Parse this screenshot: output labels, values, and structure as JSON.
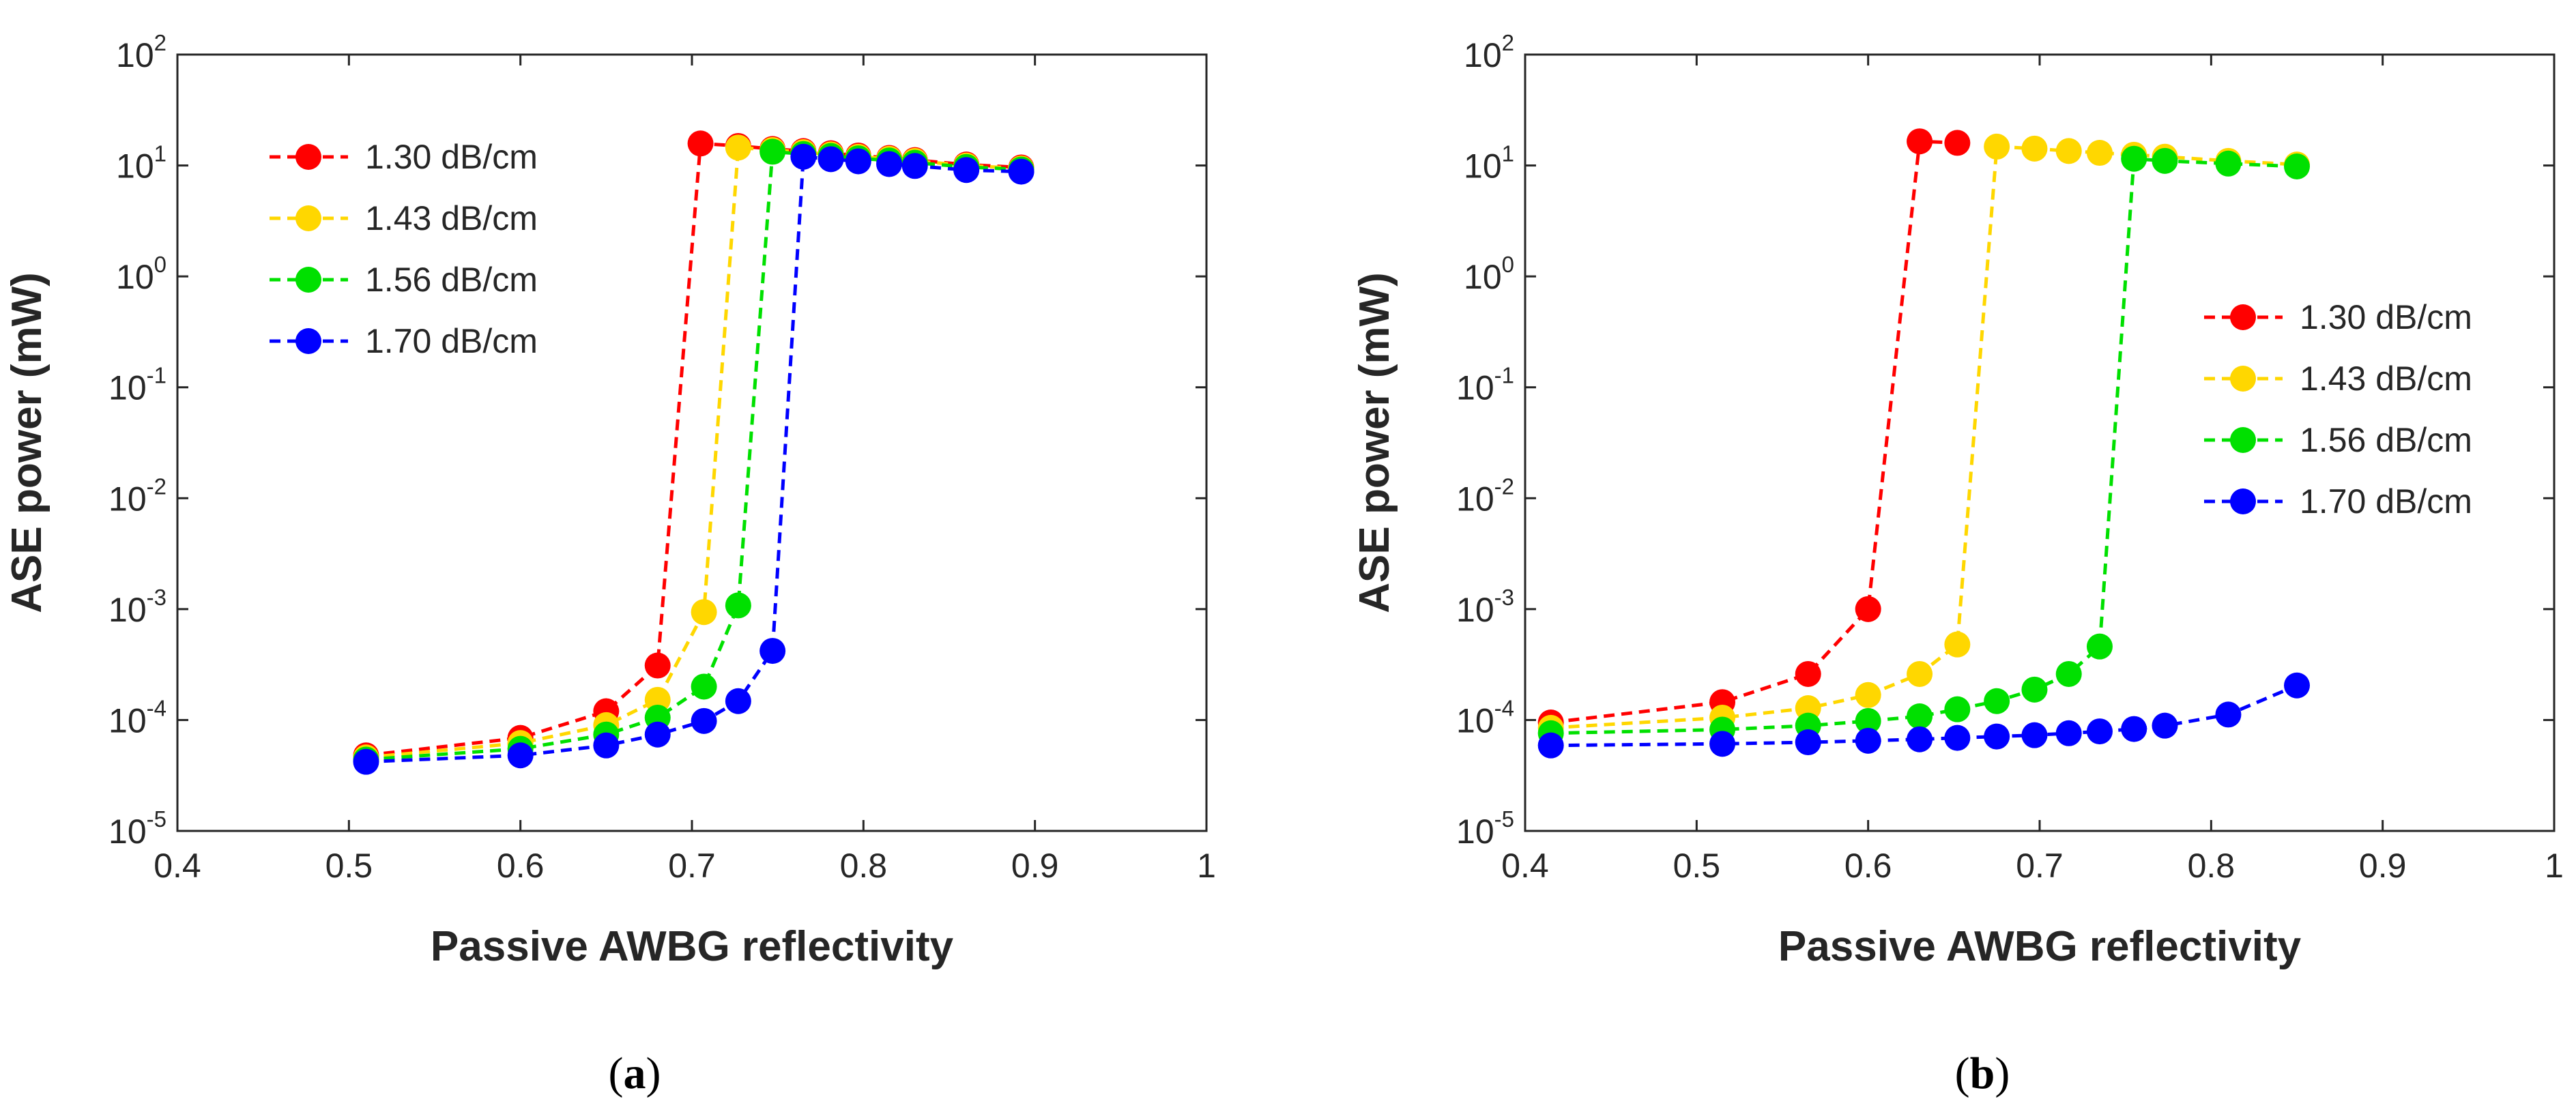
{
  "chart_data": [
    {
      "type": "line",
      "panel_label": "a",
      "xlabel": "Passive AWBG reflectivity",
      "ylabel": "ASE power (mW)",
      "xlim": [
        0.4,
        1
      ],
      "ylim": [
        1e-05,
        100
      ],
      "yscale": "log",
      "xticks": [
        "0.4",
        "0.5",
        "0.6",
        "0.7",
        "0.8",
        "0.9",
        "1"
      ],
      "yticks": [
        {
          "base": "10",
          "exp": "2"
        },
        {
          "base": "10",
          "exp": "1"
        },
        {
          "base": "10",
          "exp": "0"
        },
        {
          "base": "10",
          "exp": "-1"
        },
        {
          "base": "10",
          "exp": "-2"
        },
        {
          "base": "10",
          "exp": "-3"
        },
        {
          "base": "10",
          "exp": "-4"
        },
        {
          "base": "10",
          "exp": "-5"
        }
      ],
      "legend_position": "top-left",
      "grid": false,
      "series": [
        {
          "name": "1.30 dB/cm",
          "color": "#ff0000",
          "x": [
            0.51,
            0.6,
            0.65,
            0.68,
            0.705,
            0.727,
            0.747,
            0.765,
            0.781,
            0.797,
            0.815,
            0.83,
            0.86,
            0.892
          ],
          "y": [
            4.8e-05,
            6.9e-05,
            0.00012,
            0.00031,
            15.8,
            15.0,
            14.1,
            13.5,
            12.9,
            12.3,
            11.7,
            11.2,
            10.2,
            9.6
          ]
        },
        {
          "name": "1.43 dB/cm",
          "color": "#ffd700",
          "x": [
            0.51,
            0.6,
            0.65,
            0.68,
            0.707,
            0.727,
            0.747,
            0.765,
            0.781,
            0.797,
            0.815,
            0.83,
            0.86,
            0.892
          ],
          "y": [
            4.6e-05,
            6.2e-05,
            9e-05,
            0.000152,
            0.00094,
            14.5,
            13.8,
            13.2,
            12.6,
            12.0,
            11.5,
            11.0,
            10.0,
            9.4
          ]
        },
        {
          "name": "1.56 dB/cm",
          "color": "#00e000",
          "x": [
            0.51,
            0.6,
            0.65,
            0.68,
            0.707,
            0.727,
            0.747,
            0.765,
            0.781,
            0.797,
            0.815,
            0.83,
            0.86,
            0.892
          ],
          "y": [
            4.4e-05,
            5.5e-05,
            7.4e-05,
            0.000105,
            0.0002,
            0.00108,
            13.3,
            12.7,
            12.2,
            11.6,
            11.1,
            10.6,
            9.7,
            9.2
          ]
        },
        {
          "name": "1.70 dB/cm",
          "color": "#0000ff",
          "x": [
            0.51,
            0.6,
            0.65,
            0.68,
            0.707,
            0.727,
            0.747,
            0.765,
            0.781,
            0.797,
            0.815,
            0.83,
            0.86,
            0.892
          ],
          "y": [
            4.2e-05,
            4.8e-05,
            5.9e-05,
            7.4e-05,
            9.8e-05,
            0.000148,
            0.00042,
            12.0,
            11.4,
            10.9,
            10.3,
            9.9,
            9.1,
            8.8
          ]
        }
      ]
    },
    {
      "type": "line",
      "panel_label": "b",
      "xlabel": "Passive AWBG reflectivity",
      "ylabel": "ASE power (mW)",
      "xlim": [
        0.4,
        1
      ],
      "ylim": [
        1e-05,
        100
      ],
      "yscale": "log",
      "xticks": [
        "0.4",
        "0.5",
        "0.6",
        "0.7",
        "0.8",
        "0.9",
        "1"
      ],
      "yticks": [
        {
          "base": "10",
          "exp": "2"
        },
        {
          "base": "10",
          "exp": "1"
        },
        {
          "base": "10",
          "exp": "0"
        },
        {
          "base": "10",
          "exp": "-1"
        },
        {
          "base": "10",
          "exp": "-2"
        },
        {
          "base": "10",
          "exp": "-3"
        },
        {
          "base": "10",
          "exp": "-4"
        },
        {
          "base": "10",
          "exp": "-5"
        }
      ],
      "legend_position": "right",
      "grid": false,
      "series": [
        {
          "name": "1.30 dB/cm",
          "color": "#ff0000",
          "x": [
            0.415,
            0.515,
            0.565,
            0.6,
            0.63,
            0.652
          ],
          "y": [
            9.5e-05,
            0.000145,
            0.00026,
            0.001,
            16.5,
            16.0
          ]
        },
        {
          "name": "1.43 dB/cm",
          "color": "#ffd700",
          "x": [
            0.415,
            0.515,
            0.565,
            0.6,
            0.63,
            0.652,
            0.675,
            0.697,
            0.717,
            0.735,
            0.755,
            0.773,
            0.81,
            0.85
          ],
          "y": [
            8.5e-05,
            0.000105,
            0.000128,
            0.000168,
            0.00026,
            0.00048,
            14.8,
            14.2,
            13.5,
            13.0,
            12.5,
            12.0,
            11.0,
            10.2
          ]
        },
        {
          "name": "1.56 dB/cm",
          "color": "#00e000",
          "x": [
            0.415,
            0.515,
            0.565,
            0.6,
            0.63,
            0.652,
            0.675,
            0.697,
            0.717,
            0.735,
            0.755,
            0.773,
            0.81,
            0.85
          ],
          "y": [
            7.6e-05,
            8.2e-05,
            8.9e-05,
            9.8e-05,
            0.000108,
            0.000125,
            0.000148,
            0.000188,
            0.00026,
            0.00046,
            11.5,
            11.0,
            10.4,
            9.8
          ]
        },
        {
          "name": "1.70 dB/cm",
          "color": "#0000ff",
          "x": [
            0.415,
            0.515,
            0.565,
            0.6,
            0.63,
            0.652,
            0.675,
            0.697,
            0.717,
            0.735,
            0.755,
            0.773,
            0.81,
            0.85
          ],
          "y": [
            5.9e-05,
            6.1e-05,
            6.3e-05,
            6.5e-05,
            6.7e-05,
            6.9e-05,
            7.1e-05,
            7.3e-05,
            7.6e-05,
            7.9e-05,
            8.3e-05,
            8.9e-05,
            0.000112,
            0.000205
          ]
        }
      ]
    }
  ]
}
